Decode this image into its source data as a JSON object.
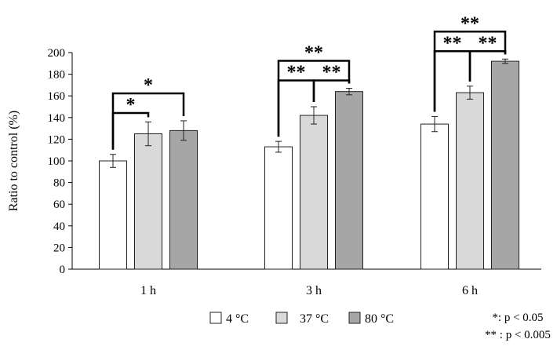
{
  "chart_data": {
    "type": "bar",
    "ylabel": "Ratio to control (%)",
    "ylim": [
      0,
      200
    ],
    "yticks": [
      0,
      20,
      40,
      60,
      80,
      100,
      120,
      140,
      160,
      180,
      200
    ],
    "categories": [
      "1 h",
      "3 h",
      "6 h"
    ],
    "series": [
      {
        "name": "4 °C",
        "color": "#ffffff",
        "values": [
          100,
          113,
          134
        ],
        "errors": [
          6,
          5,
          7
        ]
      },
      {
        "name": "37 °C",
        "color": "#d9d9d9",
        "values": [
          125,
          142,
          163
        ],
        "errors": [
          11,
          8,
          6
        ]
      },
      {
        "name": "80 °C",
        "color": "#a6a6a6",
        "values": [
          128,
          164,
          192
        ],
        "errors": [
          9,
          3,
          2
        ]
      }
    ],
    "significance": [
      {
        "category": 0,
        "from_series": 0,
        "to_series": 1,
        "label": "*"
      },
      {
        "category": 0,
        "from_series": 0,
        "to_series": 2,
        "label": "*"
      },
      {
        "category": 1,
        "from_series": 0,
        "to_series": 1,
        "label": "**"
      },
      {
        "category": 1,
        "from_series": 1,
        "to_series": 2,
        "label": "**"
      },
      {
        "category": 1,
        "from_series": 0,
        "to_series": 2,
        "label": "**"
      },
      {
        "category": 2,
        "from_series": 0,
        "to_series": 1,
        "label": "**"
      },
      {
        "category": 2,
        "from_series": 1,
        "to_series": 2,
        "label": "**"
      },
      {
        "category": 2,
        "from_series": 0,
        "to_series": 2,
        "label": "**"
      }
    ],
    "notes": [
      "*: p < 0.05",
      "** : p < 0.005"
    ],
    "legend_position": "bottom",
    "grid": false
  }
}
